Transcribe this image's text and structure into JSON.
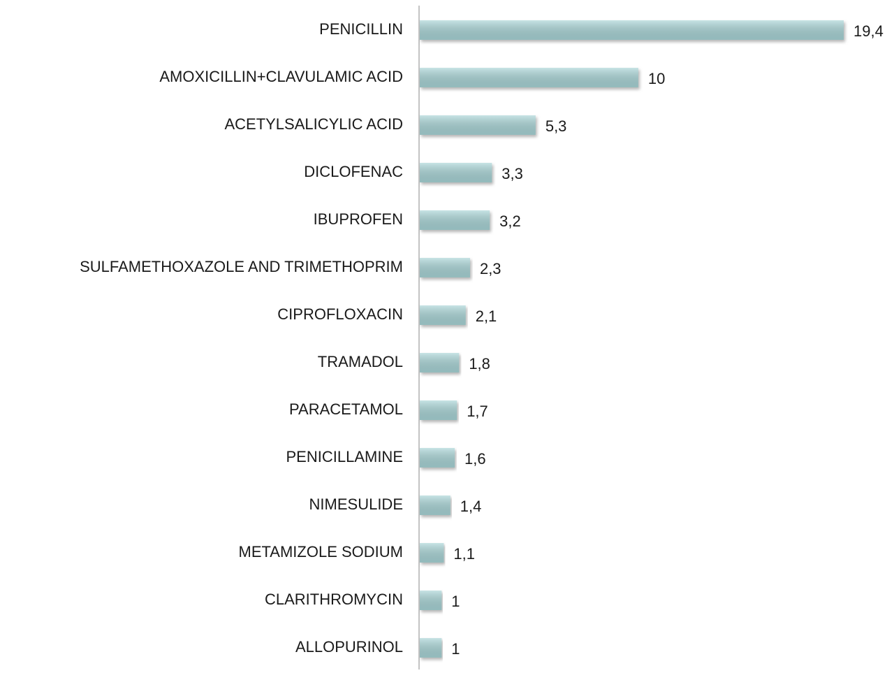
{
  "chart_data": {
    "type": "barh",
    "categories": [
      "PENICILLIN",
      "AMOXICILLIN+CLAVULAMIC ACID",
      "ACETYLSALICYLIC ACID",
      "DICLOFENAC",
      "IBUPROFEN",
      "SULFAMETHOXAZOLE AND TRIMETHOPRIM",
      "CIPROFLOXACIN",
      "TRAMADOL",
      "PARACETAMOL",
      "PENICILLAMINE",
      "NIMESULIDE",
      "METAMIZOLE SODIUM",
      "CLARITHROMYCIN",
      "ALLOPURINOL"
    ],
    "values": [
      19.4,
      10,
      5.3,
      3.3,
      3.2,
      2.3,
      2.1,
      1.8,
      1.7,
      1.6,
      1.4,
      1.1,
      1,
      1
    ],
    "value_labels": [
      "19,4",
      "10",
      "5,3",
      "3,3",
      "3,2",
      "2,3",
      "2,1",
      "1,8",
      "1,7",
      "1,6",
      "1,4",
      "1,1",
      "1",
      "1"
    ],
    "color": "#a9d5d7"
  }
}
